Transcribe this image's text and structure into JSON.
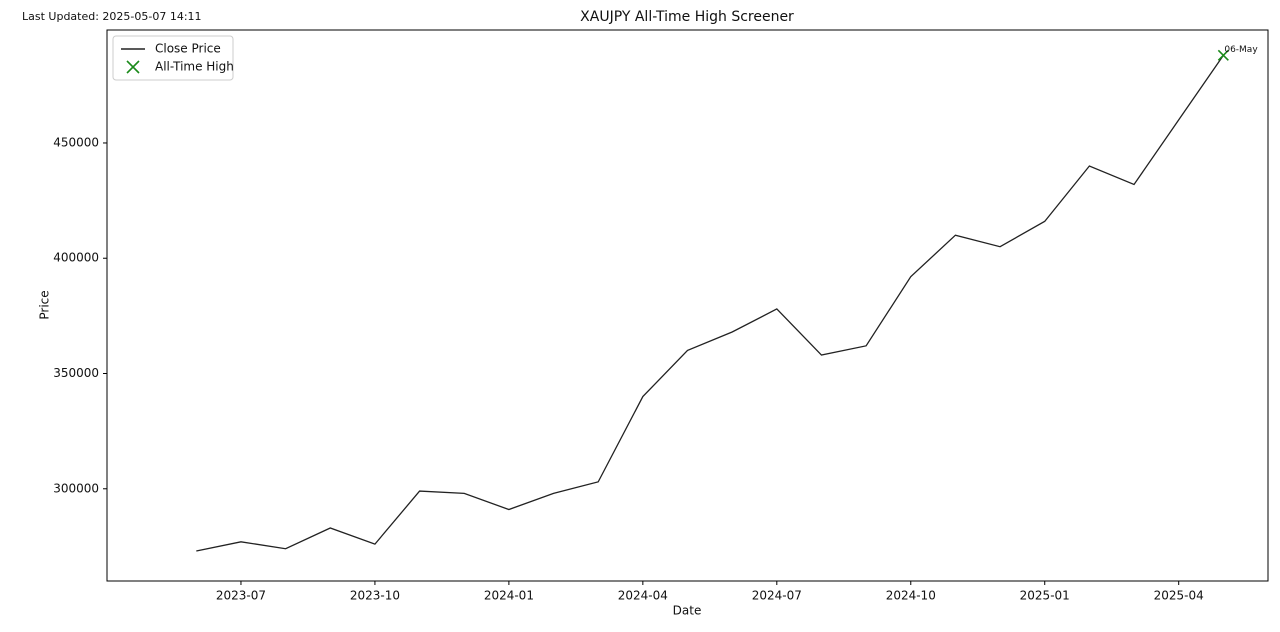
{
  "chart_data": {
    "type": "line",
    "title": "XAUJPY All-Time High Screener",
    "updated": "Last Updated: 2025-05-07 14:11",
    "xlabel": "Date",
    "ylabel": "Price",
    "x": [
      "2023-06",
      "2023-07",
      "2023-08",
      "2023-09",
      "2023-10",
      "2023-11",
      "2023-12",
      "2024-01",
      "2024-02",
      "2024-03",
      "2024-04",
      "2024-05",
      "2024-06",
      "2024-07",
      "2024-08",
      "2024-09",
      "2024-10",
      "2024-11",
      "2024-12",
      "2025-01",
      "2025-02",
      "2025-03",
      "2025-04",
      "2025-05"
    ],
    "series": [
      {
        "name": "Close Price",
        "color": "#222222",
        "values": [
          273000,
          277000,
          274000,
          283000,
          276000,
          299000,
          298000,
          291000,
          298000,
          303000,
          340000,
          360000,
          368000,
          378000,
          358000,
          362000,
          392000,
          410000,
          405000,
          416000,
          440000,
          432000,
          460000,
          488000
        ]
      }
    ],
    "markers": [
      {
        "name": "All-Time High",
        "color": "#1a8a1a",
        "x": "2025-05",
        "value": 488000,
        "label": "06-May"
      }
    ],
    "xlim": [
      "2023-04",
      "2025-06"
    ],
    "ylim": [
      260000,
      499000
    ],
    "xticks": [
      "2023-07",
      "2023-10",
      "2024-01",
      "2024-04",
      "2024-07",
      "2024-10",
      "2025-01",
      "2025-04"
    ],
    "yticks": [
      300000,
      350000,
      400000,
      450000
    ],
    "legend": "upper-left"
  }
}
